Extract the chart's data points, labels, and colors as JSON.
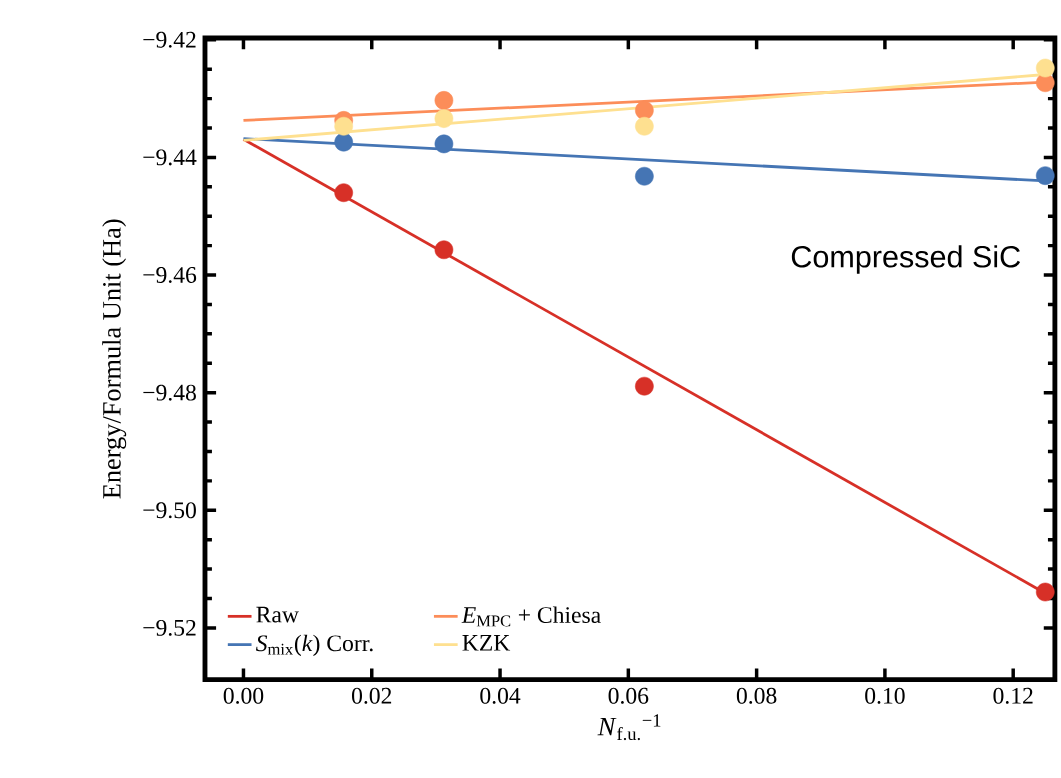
{
  "chart_data": {
    "type": "scatter",
    "xlabel": "*N*$_{f.u.}$$^{−1}$",
    "ylabel": "Energy/Formula Unit (Ha)",
    "xlim": [
      -0.006,
      0.1265
    ],
    "ylim": [
      -9.5288,
      -9.4197
    ],
    "xticks": [
      {
        "value": 0,
        "label": "0.00"
      },
      {
        "value": 0.02,
        "label": "0.02"
      },
      {
        "value": 0.04,
        "label": "0.04"
      },
      {
        "value": 0.06,
        "label": "0.06"
      },
      {
        "value": 0.08,
        "label": "0.08"
      },
      {
        "value": 0.1,
        "label": "0.10"
      },
      {
        "value": 0.12,
        "label": "0.12"
      }
    ],
    "yticks": [
      {
        "value": -9.52,
        "label": "−9.52"
      },
      {
        "value": -9.5,
        "label": "−9.50"
      },
      {
        "value": -9.48,
        "label": "−9.48"
      },
      {
        "value": -9.46,
        "label": "−9.46"
      },
      {
        "value": -9.44,
        "label": "−9.44"
      },
      {
        "value": -9.42,
        "label": "−9.42"
      }
    ],
    "grid": false,
    "legend": "bottom left",
    "annotations": [
      "Compressed SiC"
    ],
    "series": [
      {
        "name": "Raw",
        "type": "line",
        "color": "#d73027",
        "x": [
          0,
          0.125
        ],
        "values": [
          -9.4369,
          -9.5141
        ]
      },
      {
        "name": "*S*$_{mix}$(*k*) Corr.",
        "type": "line",
        "color": "#4575b4",
        "x": [
          0,
          0.125
        ],
        "values": [
          -9.4368,
          -9.444
        ]
      },
      {
        "name": "*E*$_{MPC}$ + Chiesa",
        "type": "line",
        "color": "#fc8d59",
        "x": [
          0,
          0.125
        ],
        "values": [
          -9.4337,
          -9.4272
        ]
      },
      {
        "name": "KZK",
        "type": "line",
        "color": "#fee090",
        "x": [
          0,
          0.125
        ],
        "values": [
          -9.4371,
          -9.4259
        ]
      },
      {
        "marker": "circle",
        "color": "#d73027",
        "x": [
          0.015625,
          0.03125,
          0.0625,
          0.125
        ],
        "values": [
          -9.446,
          -9.4557,
          -9.4789,
          -9.5139
        ]
      },
      {
        "marker": "circle",
        "color": "#4575b4",
        "x": [
          0.015625,
          0.03125,
          0.0625,
          0.125
        ],
        "values": [
          -9.4374,
          -9.4377,
          -9.4432,
          -9.4431
        ]
      },
      {
        "marker": "circle",
        "color": "#fc8d59",
        "x": [
          0.015625,
          0.03125,
          0.0625,
          0.125
        ],
        "values": [
          -9.4337,
          -9.4303,
          -9.432,
          -9.4273
        ]
      },
      {
        "marker": "circle",
        "color": "#fee090",
        "x": [
          0.015625,
          0.03125,
          0.0625,
          0.125
        ],
        "values": [
          -9.4347,
          -9.4334,
          -9.4347,
          -9.4248
        ]
      }
    ]
  }
}
